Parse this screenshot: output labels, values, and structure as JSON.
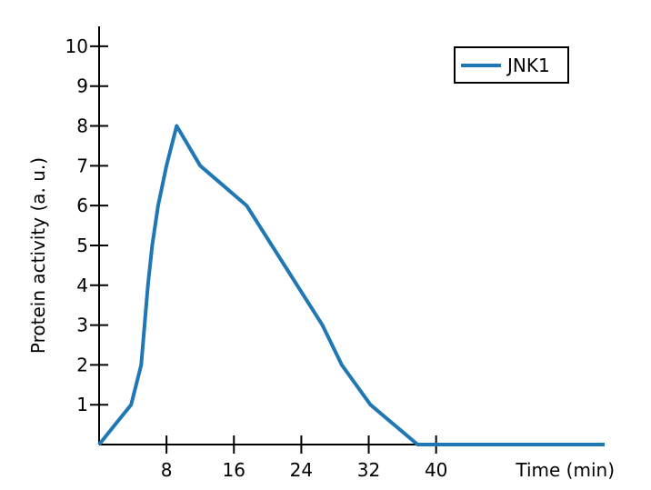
{
  "chart_data": {
    "type": "line",
    "xlabel": "Time (min)",
    "ylabel": "Protein activity (a. u.)",
    "xlim": [
      0,
      60
    ],
    "ylim": [
      0,
      10.5
    ],
    "x_ticks": [
      8,
      16,
      24,
      32,
      40
    ],
    "y_ticks": [
      1,
      2,
      3,
      4,
      5,
      6,
      7,
      8,
      9,
      10
    ],
    "grid": false,
    "legend_position": "top-right",
    "series": [
      {
        "name": "JNK1",
        "color": "#1f77b4",
        "x": [
          0,
          3.8,
          5.0,
          5.8,
          6.3,
          7.0,
          8.0,
          9.2,
          12.0,
          17.5,
          20.5,
          26.5,
          28.8,
          32.2,
          37.8,
          60
        ],
        "y": [
          0,
          1,
          2,
          4,
          5,
          6,
          7,
          8,
          7,
          6,
          5,
          3,
          2,
          1,
          0,
          0
        ]
      }
    ]
  }
}
